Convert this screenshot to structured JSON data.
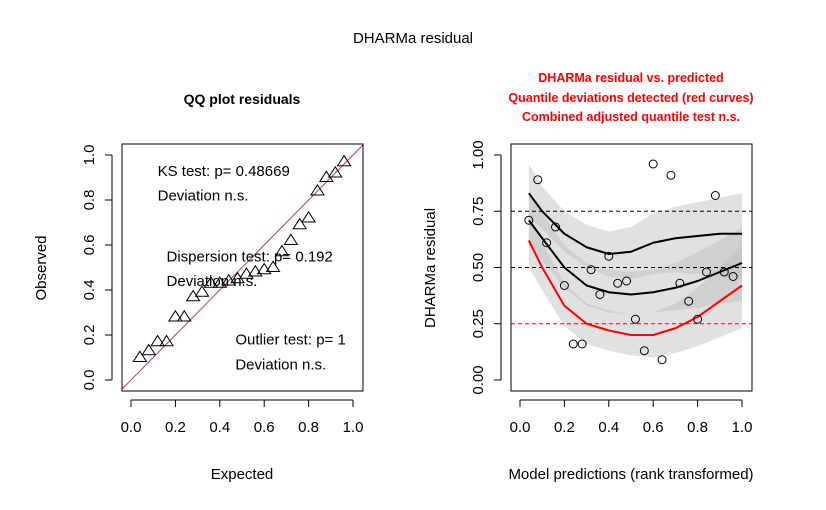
{
  "figure": {
    "title": "DHARMa residual"
  },
  "chart_data": [
    {
      "type": "scatter",
      "title": "QQ plot residuals",
      "xlabel": "Expected",
      "ylabel": "Observed",
      "xlim": [
        0,
        1
      ],
      "ylim": [
        0,
        1
      ],
      "xticks": [
        "0.0",
        "0.2",
        "0.4",
        "0.6",
        "0.8",
        "1.0"
      ],
      "yticks": [
        "0.0",
        "0.2",
        "0.4",
        "0.6",
        "0.8",
        "1.0"
      ],
      "reference_line": {
        "from": [
          0,
          0
        ],
        "to": [
          1,
          1
        ],
        "color": "#d6334d"
      },
      "marker": "triangle",
      "points": [
        [
          0.04,
          0.1
        ],
        [
          0.08,
          0.13
        ],
        [
          0.12,
          0.17
        ],
        [
          0.16,
          0.17
        ],
        [
          0.2,
          0.28
        ],
        [
          0.24,
          0.28
        ],
        [
          0.28,
          0.37
        ],
        [
          0.32,
          0.39
        ],
        [
          0.36,
          0.43
        ],
        [
          0.4,
          0.43
        ],
        [
          0.44,
          0.44
        ],
        [
          0.48,
          0.45
        ],
        [
          0.52,
          0.47
        ],
        [
          0.56,
          0.48
        ],
        [
          0.6,
          0.49
        ],
        [
          0.64,
          0.5
        ],
        [
          0.68,
          0.57
        ],
        [
          0.72,
          0.62
        ],
        [
          0.76,
          0.69
        ],
        [
          0.8,
          0.72
        ],
        [
          0.84,
          0.84
        ],
        [
          0.88,
          0.9
        ],
        [
          0.92,
          0.92
        ],
        [
          0.96,
          0.97
        ]
      ],
      "annotations": [
        {
          "text": "KS test: p= 0.48669",
          "x": 0.12,
          "y": 0.93
        },
        {
          "text": "Deviation  n.s.",
          "x": 0.12,
          "y": 0.82
        },
        {
          "text": "Dispersion test: p= 0.192",
          "x": 0.16,
          "y": 0.55
        },
        {
          "text": "Deviation  n.s.",
          "x": 0.16,
          "y": 0.44
        },
        {
          "text": "Outlier test: p= 1",
          "x": 0.47,
          "y": 0.18
        },
        {
          "text": "Deviation  n.s.",
          "x": 0.47,
          "y": 0.07
        }
      ]
    },
    {
      "type": "scatter",
      "title_lines": [
        "DHARMa residual vs. predicted",
        "Quantile deviations detected (red curves)",
        "Combined adjusted quantile test n.s."
      ],
      "title_color": "#ff0000",
      "xlabel": "Model predictions (rank transformed)",
      "ylabel": "DHARMa residual",
      "xlim": [
        0,
        1
      ],
      "ylim": [
        0,
        1
      ],
      "xticks": [
        "0.0",
        "0.2",
        "0.4",
        "0.6",
        "0.8",
        "1.0"
      ],
      "yticks": [
        "0.00",
        "0.25",
        "0.50",
        "0.75",
        "1.00"
      ],
      "hlines": [
        {
          "y": 0.25,
          "color": "#ff0000"
        },
        {
          "y": 0.5,
          "color": "#000000"
        },
        {
          "y": 0.75,
          "color": "#000000"
        }
      ],
      "marker": "circle",
      "points": [
        [
          0.04,
          0.71
        ],
        [
          0.08,
          0.89
        ],
        [
          0.12,
          0.61
        ],
        [
          0.16,
          0.68
        ],
        [
          0.2,
          0.42
        ],
        [
          0.24,
          0.16
        ],
        [
          0.28,
          0.16
        ],
        [
          0.32,
          0.49
        ],
        [
          0.36,
          0.38
        ],
        [
          0.4,
          0.55
        ],
        [
          0.44,
          0.43
        ],
        [
          0.48,
          0.44
        ],
        [
          0.52,
          0.27
        ],
        [
          0.56,
          0.13
        ],
        [
          0.6,
          0.96
        ],
        [
          0.64,
          0.09
        ],
        [
          0.68,
          0.91
        ],
        [
          0.72,
          0.43
        ],
        [
          0.76,
          0.35
        ],
        [
          0.8,
          0.27
        ],
        [
          0.84,
          0.48
        ],
        [
          0.88,
          0.82
        ],
        [
          0.92,
          0.48
        ],
        [
          0.96,
          0.46
        ]
      ],
      "quantile_curves": [
        {
          "quantile": 0.75,
          "color": "#000000",
          "x": [
            0.04,
            0.1,
            0.2,
            0.3,
            0.4,
            0.5,
            0.6,
            0.7,
            0.8,
            0.9,
            1.0
          ],
          "y": [
            0.83,
            0.75,
            0.65,
            0.59,
            0.56,
            0.57,
            0.61,
            0.63,
            0.64,
            0.65,
            0.65
          ],
          "band_low": [
            0.72,
            0.67,
            0.57,
            0.5,
            0.46,
            0.45,
            0.47,
            0.48,
            0.47,
            0.46,
            0.45
          ],
          "band_high": [
            0.96,
            0.86,
            0.75,
            0.69,
            0.66,
            0.68,
            0.74,
            0.77,
            0.79,
            0.81,
            0.83
          ]
        },
        {
          "quantile": 0.5,
          "color": "#000000",
          "x": [
            0.04,
            0.1,
            0.2,
            0.3,
            0.4,
            0.5,
            0.6,
            0.7,
            0.8,
            0.9,
            1.0
          ],
          "y": [
            0.71,
            0.63,
            0.5,
            0.42,
            0.39,
            0.38,
            0.39,
            0.41,
            0.44,
            0.48,
            0.52
          ],
          "band_low": [
            0.6,
            0.53,
            0.41,
            0.33,
            0.3,
            0.29,
            0.3,
            0.31,
            0.32,
            0.34,
            0.35
          ],
          "band_high": [
            0.83,
            0.74,
            0.6,
            0.52,
            0.49,
            0.48,
            0.49,
            0.52,
            0.57,
            0.62,
            0.68
          ]
        },
        {
          "quantile": 0.25,
          "color": "#ff0000",
          "x": [
            0.04,
            0.1,
            0.2,
            0.3,
            0.4,
            0.5,
            0.6,
            0.7,
            0.8,
            0.9,
            1.0
          ],
          "y": [
            0.62,
            0.5,
            0.33,
            0.25,
            0.22,
            0.2,
            0.2,
            0.23,
            0.28,
            0.35,
            0.42
          ],
          "band_low": [
            0.5,
            0.4,
            0.24,
            0.16,
            0.13,
            0.11,
            0.1,
            0.12,
            0.15,
            0.19,
            0.23
          ],
          "band_high": [
            0.74,
            0.61,
            0.43,
            0.34,
            0.31,
            0.29,
            0.3,
            0.34,
            0.41,
            0.5,
            0.6
          ]
        }
      ]
    }
  ]
}
